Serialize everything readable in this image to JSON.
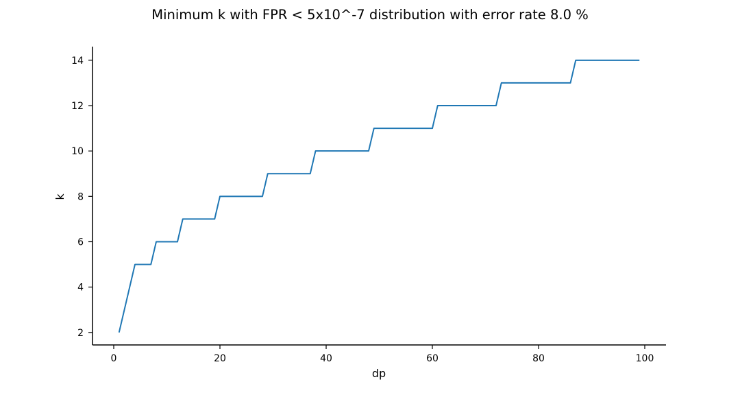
{
  "chart_data": {
    "type": "line",
    "title": "Minimum k with FPR < 5x10^-7 distribution with error rate 8.0 %",
    "xlabel": "dp",
    "ylabel": "k",
    "xlim": [
      -4,
      104
    ],
    "ylim": [
      1.45,
      14.6
    ],
    "x_ticks": [
      0,
      20,
      40,
      60,
      80,
      100
    ],
    "y_ticks": [
      2,
      4,
      6,
      8,
      10,
      12,
      14
    ],
    "x_tick_labels": [
      "0",
      "20",
      "40",
      "60",
      "80",
      "100"
    ],
    "y_tick_labels": [
      "2",
      "4",
      "6",
      "8",
      "10",
      "12",
      "14"
    ],
    "grid": false,
    "legend": "none",
    "series": [
      {
        "color": "#1f77b4",
        "x": [
          1,
          4,
          7,
          8,
          12,
          13,
          19,
          20,
          28,
          29,
          37,
          38,
          48,
          49,
          60,
          61,
          72,
          73,
          86,
          87,
          99
        ],
        "y": [
          2,
          5,
          5,
          6,
          6,
          7,
          7,
          8,
          8,
          9,
          9,
          10,
          10,
          11,
          11,
          12,
          12,
          13,
          13,
          14,
          14
        ]
      }
    ]
  }
}
